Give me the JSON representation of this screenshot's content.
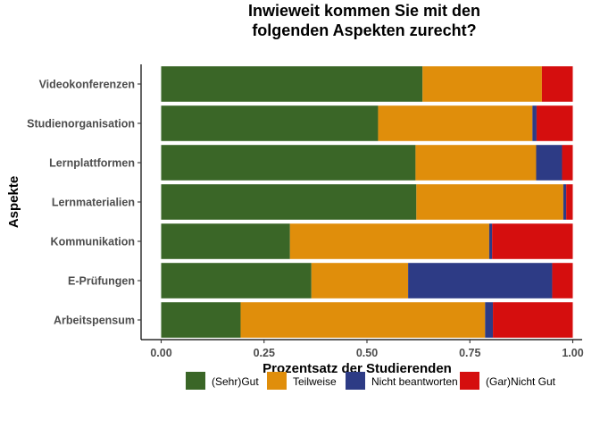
{
  "chart_data": {
    "type": "bar",
    "orientation": "horizontal",
    "stacked": true,
    "title": "Inwieweit kommen Sie mit den\nfolgenden Aspekten zurecht?",
    "xlabel": "Prozentsatz der Studierenden",
    "ylabel": "Aspekte",
    "xlim": [
      0,
      1
    ],
    "xticks": [
      "0.00",
      "0.25",
      "0.50",
      "0.75",
      "1.00"
    ],
    "grid": false,
    "legend_position": "bottom",
    "categories": [
      "Videokonferenzen",
      "Studienorganisation",
      "Lernplattformen",
      "Lernmaterialien",
      "Kommunikation",
      "E-Prüfungen",
      "Arbeitspensum"
    ],
    "series": [
      {
        "name": "(Sehr)Gut",
        "color": "#3a6627",
        "values": [
          0.635,
          0.527,
          0.618,
          0.62,
          0.313,
          0.365,
          0.193
        ]
      },
      {
        "name": "Teilweise",
        "color": "#e08e0b",
        "values": [
          0.29,
          0.375,
          0.293,
          0.357,
          0.484,
          0.235,
          0.594
        ]
      },
      {
        "name": "Nicht beantworten",
        "color": "#2d3b85",
        "values": [
          0.0,
          0.01,
          0.063,
          0.007,
          0.007,
          0.35,
          0.019
        ]
      },
      {
        "name": "(Gar)Nicht Gut",
        "color": "#d50e0e",
        "values": [
          0.075,
          0.088,
          0.026,
          0.016,
          0.196,
          0.05,
          0.194
        ]
      }
    ]
  }
}
